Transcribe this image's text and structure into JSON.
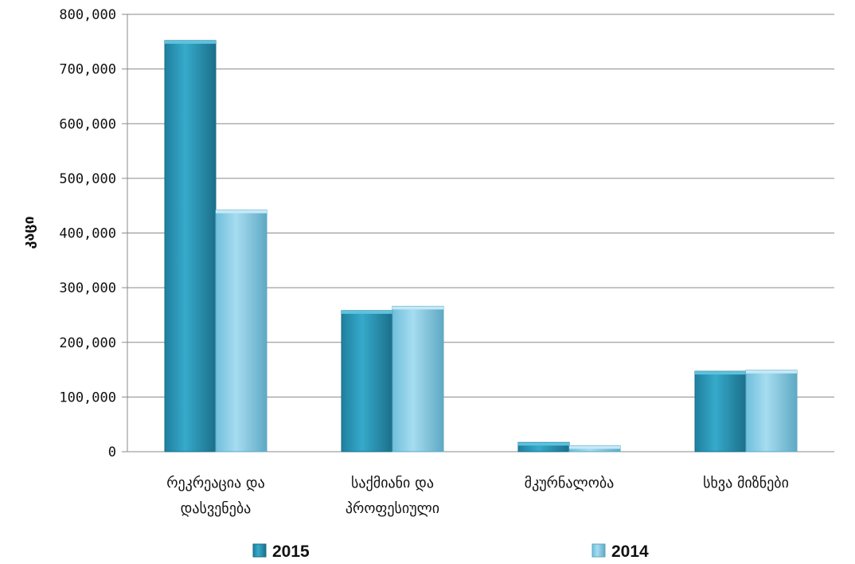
{
  "chart_data": {
    "type": "bar",
    "title": "",
    "xlabel": "",
    "ylabel": "კაცი",
    "ylim": [
      0,
      800000
    ],
    "ytick_step": 100000,
    "yticks": [
      "0",
      "100,000",
      "200,000",
      "300,000",
      "400,000",
      "500,000",
      "600,000",
      "700,000",
      "800,000"
    ],
    "grid": true,
    "legend_position": "bottom",
    "categories": [
      [
        "რეკრეაცია და",
        "დასვენება"
      ],
      [
        "საქმიანი და",
        "პროფესიული"
      ],
      [
        "მკურნალობა"
      ],
      [
        "სხვა მიზნები"
      ]
    ],
    "series": [
      {
        "name": "2015",
        "color": "#2e9fbf",
        "values": [
          752000,
          258000,
          17000,
          147000
        ]
      },
      {
        "name": "2014",
        "color": "#8ecfe6",
        "values": [
          442000,
          266000,
          11000,
          149000
        ]
      }
    ]
  }
}
